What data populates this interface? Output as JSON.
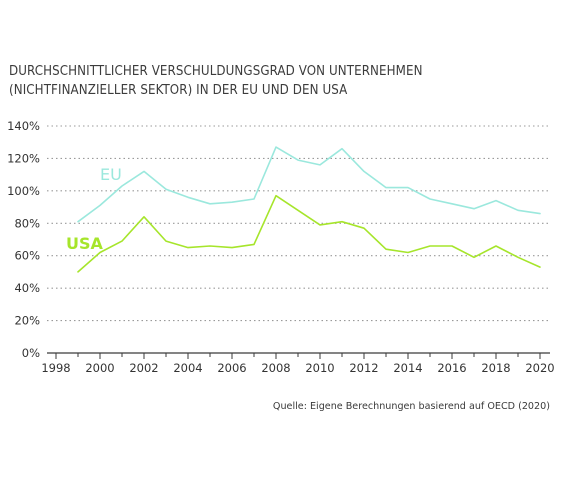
{
  "chart_data": {
    "type": "line",
    "title_lines": [
      "DURCHSCHNITTLICHER VERSCHULDUNGSGRAD VON UNTERNEHMEN",
      "(NICHTFINANZIELLER SEKTOR) IN DER EU UND DEN USA"
    ],
    "x": [
      1999,
      2000,
      2001,
      2002,
      2003,
      2004,
      2005,
      2006,
      2007,
      2008,
      2009,
      2010,
      2011,
      2012,
      2013,
      2014,
      2015,
      2016,
      2017,
      2018,
      2019,
      2020
    ],
    "series": [
      {
        "name": "EU",
        "color": "#9be8dd",
        "values": [
          81,
          91,
          103,
          112,
          101,
          96,
          92,
          93,
          95,
          127,
          119,
          116,
          126,
          112,
          102,
          102,
          95,
          92,
          89,
          94,
          88,
          86
        ]
      },
      {
        "name": "USA",
        "color": "#a6e52b",
        "values": [
          50,
          62,
          69,
          84,
          69,
          65,
          66,
          65,
          67,
          97,
          88,
          79,
          81,
          77,
          64,
          62,
          66,
          66,
          59,
          66,
          59,
          53
        ]
      }
    ],
    "xlim": [
      1998,
      2020
    ],
    "xticks": [
      "1998",
      "2000",
      "2002",
      "2004",
      "2006",
      "2008",
      "2010",
      "2012",
      "2014",
      "2016",
      "2018",
      "2020"
    ],
    "ylim": [
      0,
      140
    ],
    "yticks": [
      "0%",
      "20%",
      "40%",
      "60%",
      "80%",
      "100%",
      "120%",
      "140%"
    ],
    "grid": true,
    "legend": "inline labels",
    "grid_color": "#9a9a9a",
    "axis_color": "#3a3a3a",
    "source": "Quelle: Eigene Berechnungen basierend auf OECD (2020)"
  }
}
